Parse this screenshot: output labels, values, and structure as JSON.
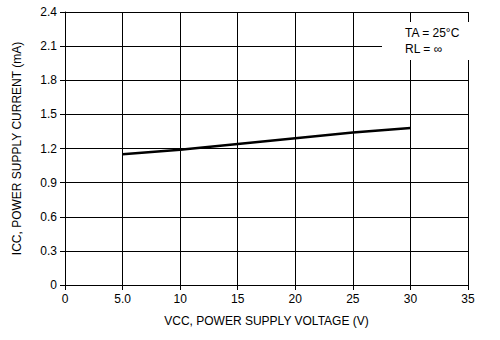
{
  "chart_data": {
    "type": "line",
    "x_label": "VCC, POWER SUPPLY VOLTAGE (V)",
    "y_label": "ICC, POWER SUPPLY CURRENT (mA)",
    "annotations": [
      "TA = 25°C",
      "RL = ∞"
    ],
    "x": [
      5,
      10,
      15,
      20,
      25,
      30
    ],
    "values": [
      1.15,
      1.19,
      1.24,
      1.29,
      1.34,
      1.38
    ],
    "color": "#000000",
    "xlim": [
      0,
      35
    ],
    "xticks": [
      0,
      {
        "value": 5,
        "label": "5.0"
      },
      10,
      15,
      20,
      25,
      30,
      35
    ],
    "ylim": [
      0,
      2.4
    ],
    "yticks": [
      0,
      0.3,
      0.6,
      0.9,
      1.2,
      1.5,
      1.8,
      2.1,
      2.4
    ],
    "grid": true
  }
}
